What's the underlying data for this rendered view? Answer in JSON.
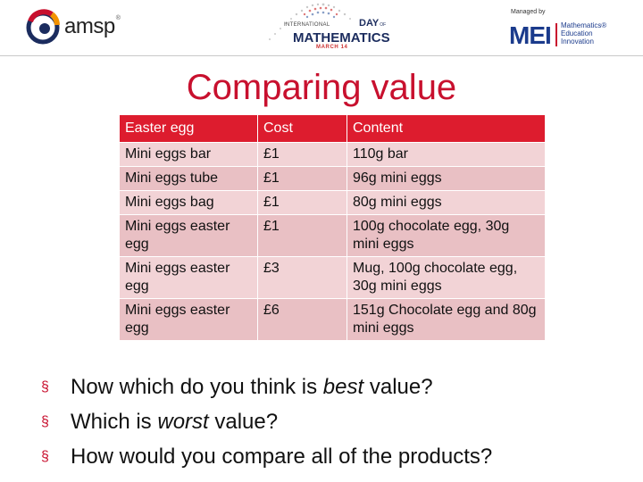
{
  "header": {
    "amsp_logo": {
      "text": "amsp",
      "sup": "®",
      "colors": [
        "#c8102e",
        "#f39200",
        "#1b2c5e"
      ],
      "icon": "amsp-swirl-icon"
    },
    "idm_logo": {
      "line1": "INTERNATIONAL",
      "day": "DAY",
      "of": "OF",
      "title": "MATHEMATICS",
      "date": "MARCH 14",
      "icon": "dotted-triangle-icon"
    },
    "mei_logo": {
      "managed_by": "Managed by",
      "mark": "MEI",
      "words": [
        "Mathematics®",
        "Education",
        "Innovation"
      ]
    }
  },
  "title": "Comparing value",
  "table": {
    "headers": [
      "Easter egg",
      "Cost",
      "Content"
    ],
    "rows": [
      [
        "Mini eggs bar",
        "£1",
        "110g bar"
      ],
      [
        "Mini eggs tube",
        "£1",
        "96g mini eggs"
      ],
      [
        "Mini eggs bag",
        "£1",
        "80g mini eggs"
      ],
      [
        "Mini eggs easter egg",
        "£1",
        "100g chocolate egg, 30g mini eggs"
      ],
      [
        "Mini eggs easter egg",
        "£3",
        "Mug, 100g chocolate egg, 30g mini eggs"
      ],
      [
        "Mini eggs easter egg",
        "£6",
        "151g Chocolate egg and 80g mini eggs"
      ]
    ],
    "header_color": "#dd1c2e",
    "row_colors": [
      "#f2d3d6",
      "#e9c0c4"
    ]
  },
  "bullets": [
    {
      "before": "Now which do you think is ",
      "em": "best",
      "after": " value?"
    },
    {
      "before": "Which is ",
      "em": "worst",
      "after": " value?"
    },
    {
      "before": "How would you compare all of the products?",
      "em": "",
      "after": ""
    }
  ],
  "bullet_marker": "§",
  "accent_color": "#c8102e"
}
